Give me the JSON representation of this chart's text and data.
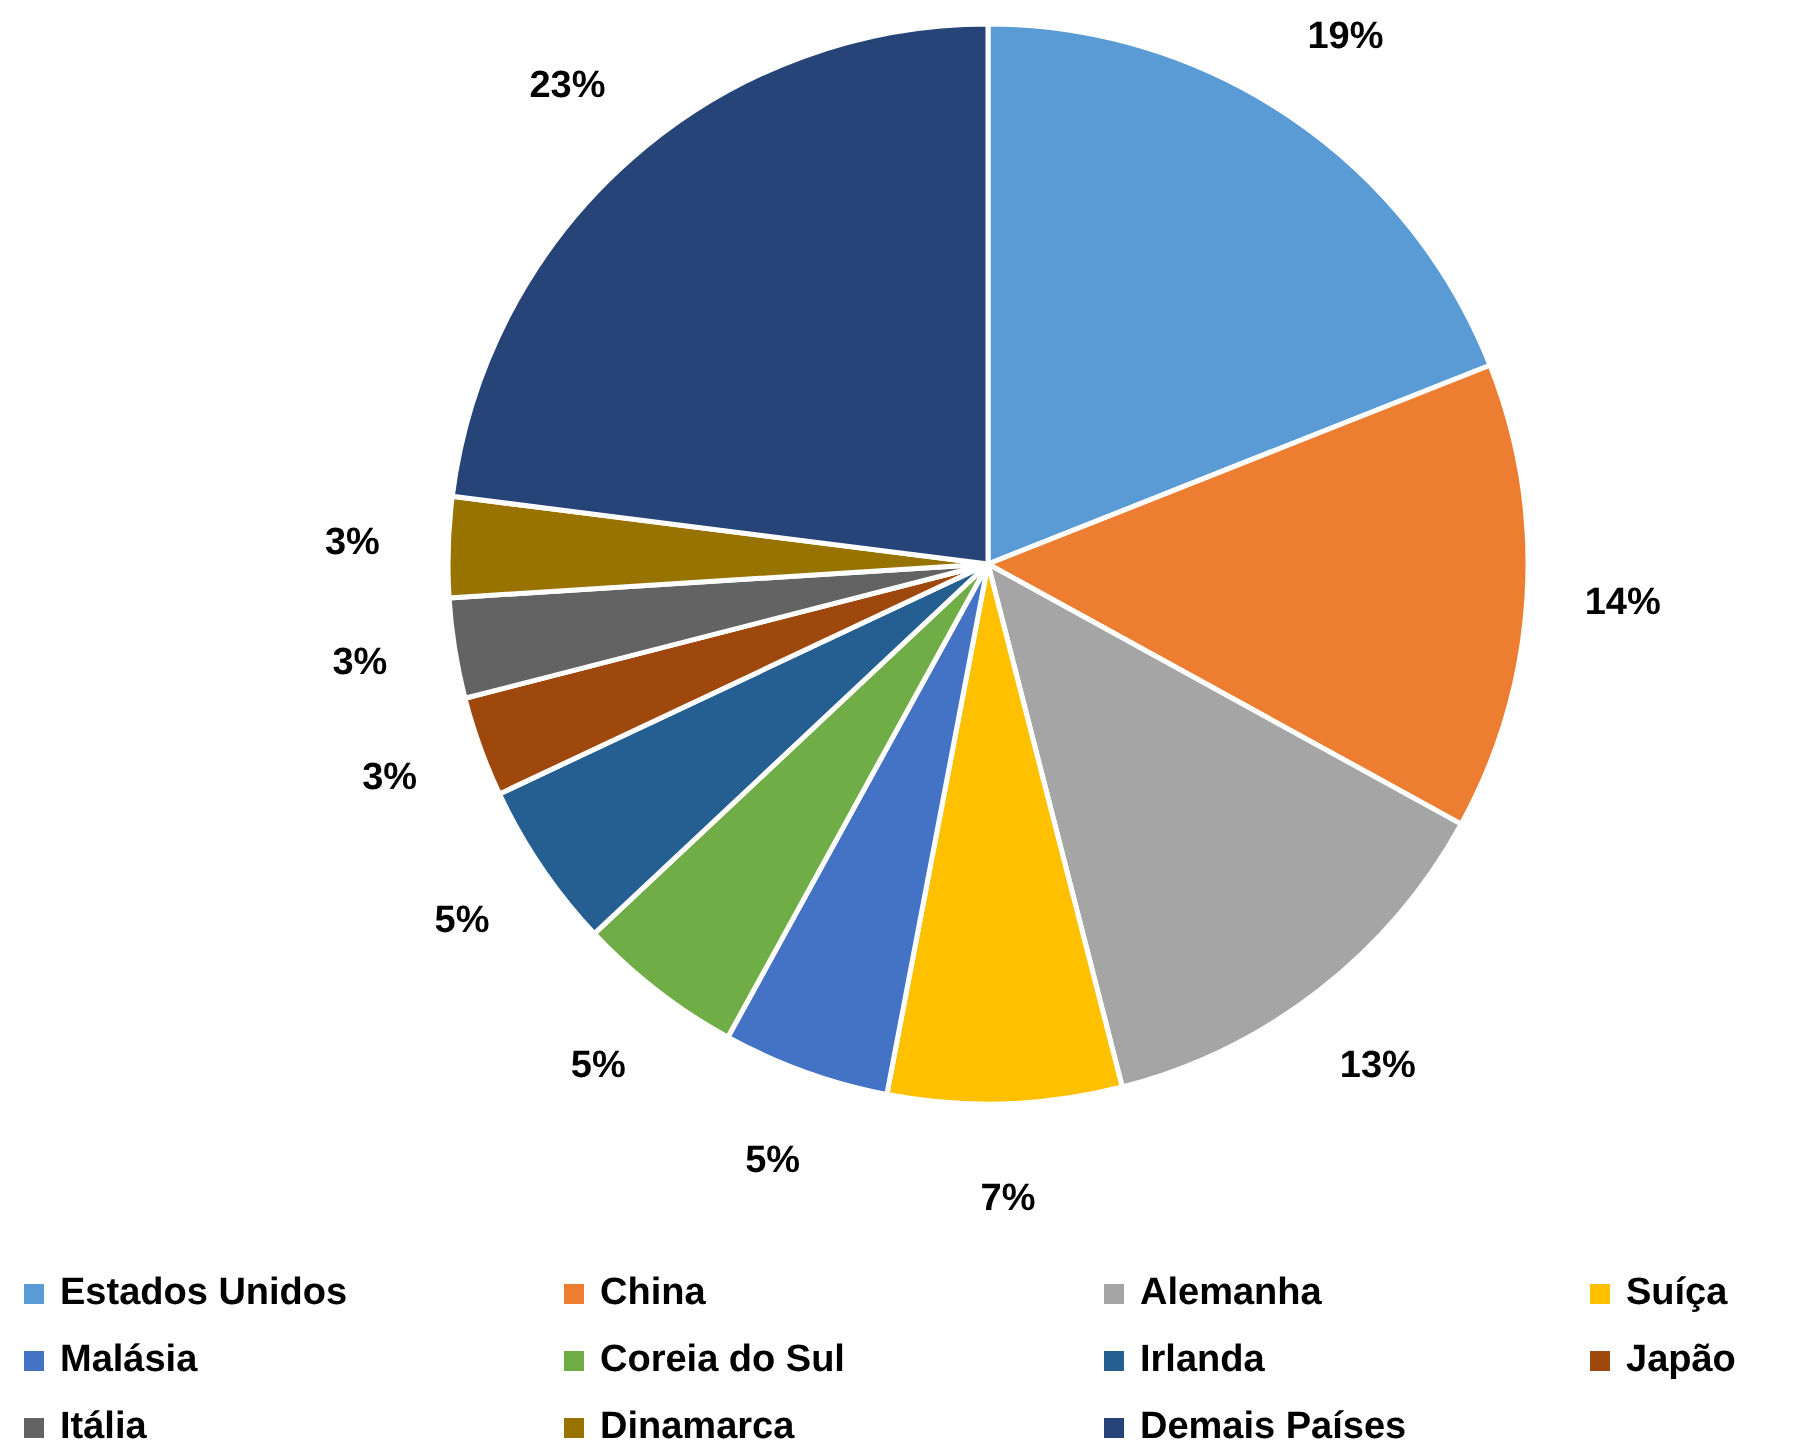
{
  "chart_data": {
    "type": "pie",
    "categories": [
      "Estados Unidos",
      "China",
      "Alemanha",
      "Suíça",
      "Malásia",
      "Coreia do Sul",
      "Irlanda",
      "Japão",
      "Itália",
      "Dinamarca",
      "Demais Países"
    ],
    "values": [
      19,
      14,
      13,
      7,
      5,
      5,
      5,
      3,
      3,
      3,
      23
    ],
    "value_labels": [
      "19%",
      "14%",
      "13%",
      "7%",
      "5%",
      "5%",
      "5%",
      "3%",
      "3%",
      "3%",
      "23%"
    ],
    "colors": [
      "#5b9bd5",
      "#ed7d31",
      "#a5a5a5",
      "#ffc000",
      "#4472c4",
      "#70ad47",
      "#255e91",
      "#9e480e",
      "#636363",
      "#997300",
      "#264478"
    ],
    "legend": "bottom"
  }
}
